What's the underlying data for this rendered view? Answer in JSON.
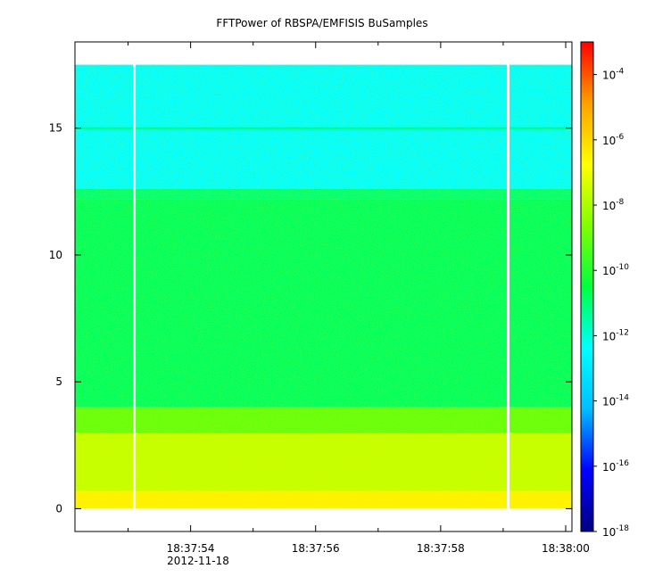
{
  "chart_data": {
    "type": "heatmap",
    "title": "FFTPower of RBSPA/EMFISIS  BuSamples",
    "xlabel": "",
    "ylabel": "",
    "x_ticks": [
      {
        "value": 1,
        "label": "18:37:54"
      },
      {
        "value": 3,
        "label": "18:37:56"
      },
      {
        "value": 5,
        "label": "18:37:58"
      },
      {
        "value": 7,
        "label": "18:38:00"
      }
    ],
    "x_minor_ticks": [
      0,
      2,
      4,
      6
    ],
    "x_date_label": "2012-11-18",
    "xlim": [
      -0.85,
      7.1
    ],
    "ylim": [
      -0.9,
      18.4
    ],
    "y_ticks": [
      0,
      5,
      10,
      15
    ],
    "data_extent": {
      "x": [
        -0.85,
        7.1
      ],
      "y": [
        0.0,
        17.5
      ]
    },
    "gaps_x": [
      0.1,
      6.08
    ],
    "bands": [
      {
        "y_range": [
          0.0,
          0.7
        ],
        "log_power": -6.5,
        "description": "orange-red"
      },
      {
        "y_range": [
          0.7,
          3.0
        ],
        "log_power": -7.6,
        "description": "orange-yellow"
      },
      {
        "y_range": [
          3.0,
          4.0
        ],
        "log_power": -9.0,
        "description": "yellow-green"
      },
      {
        "y_range": [
          4.0,
          12.2
        ],
        "log_power": -10.8,
        "description": "green"
      },
      {
        "y_range": [
          12.2,
          12.6
        ],
        "log_power": -11.0,
        "description": "green"
      },
      {
        "y_range": [
          12.6,
          17.5
        ],
        "log_power": -12.4,
        "description": "green-cyan"
      }
    ],
    "line_features": [
      {
        "y": 15.0,
        "log_power": -11.0
      }
    ],
    "colorbar": {
      "scale": "log",
      "range": [
        1e-18,
        0.001
      ],
      "ticks": [
        {
          "exponent": -4,
          "base": "10",
          "label": "-4"
        },
        {
          "exponent": -6,
          "base": "10",
          "label": "-6"
        },
        {
          "exponent": -8,
          "base": "10",
          "label": "-8"
        },
        {
          "exponent": -10,
          "base": "10",
          "label": "-10"
        },
        {
          "exponent": -12,
          "base": "10",
          "label": "-12"
        },
        {
          "exponent": -14,
          "base": "10",
          "label": "-14"
        },
        {
          "exponent": -16,
          "base": "10",
          "label": "-16"
        },
        {
          "exponent": -18,
          "base": "10",
          "label": "-18"
        }
      ],
      "colormap": [
        "#000080",
        "#0000ff",
        "#00bfff",
        "#00ffff",
        "#00ff40",
        "#80ff00",
        "#ffff00",
        "#ffa000",
        "#ff0000"
      ]
    }
  }
}
